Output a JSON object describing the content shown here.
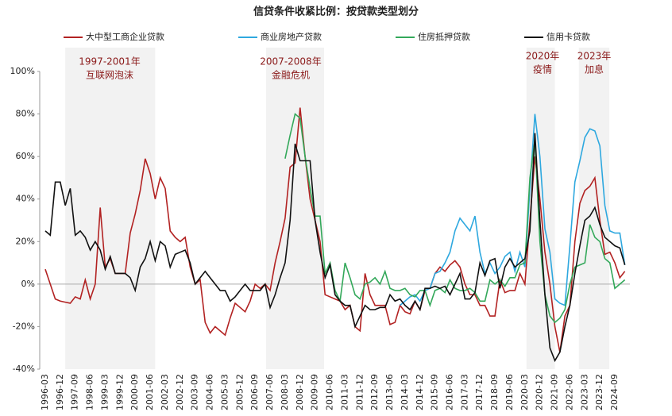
{
  "chart_data": {
    "type": "line",
    "title": "信贷条件收紧比例：按贷款类型划分",
    "categories": [
      "1996-03",
      null,
      null,
      "1996-12",
      null,
      null,
      "1997-09",
      null,
      null,
      "1998-06",
      null,
      null,
      "1999-03",
      null,
      null,
      "1999-12",
      null,
      null,
      "2000-09",
      null,
      null,
      "2001-06",
      null,
      null,
      "2002-03",
      null,
      null,
      "2002-12",
      null,
      null,
      "2003-09",
      null,
      null,
      "2004-06",
      null,
      null,
      "2005-03",
      null,
      null,
      "2005-12",
      null,
      null,
      "2006-09",
      null,
      null,
      "2007-06",
      null,
      null,
      "2008-03",
      null,
      null,
      "2008-12",
      null,
      null,
      "2009-09",
      null,
      null,
      "2010-06",
      null,
      null,
      "2011-03",
      null,
      null,
      "2011-12",
      null,
      null,
      "2012-09",
      null,
      null,
      "2013-06",
      null,
      null,
      "2014-03",
      null,
      null,
      "2014-12",
      null,
      null,
      "2015-09",
      null,
      null,
      "2016-06",
      null,
      null,
      "2017-03",
      null,
      null,
      "2017-12",
      null,
      null,
      "2018-09",
      null,
      null,
      "2019-06",
      null,
      null,
      "2020-03",
      null,
      null,
      "2020-12",
      null,
      null,
      "2021-09",
      null,
      null,
      "2022-06",
      null,
      null,
      "2023-03",
      null,
      null,
      "2023-12",
      null,
      null,
      "2024-09",
      null,
      null
    ],
    "series": [
      {
        "name": "大中型工商企业贷款",
        "color": "#b22222",
        "values": [
          7,
          0,
          -7,
          -8,
          -8.5,
          -9,
          -6,
          -7,
          2,
          -7,
          0,
          36,
          8,
          12,
          5,
          5,
          5,
          24,
          33,
          44,
          59,
          52,
          40,
          50,
          45,
          25,
          22,
          20,
          22,
          8,
          0,
          2,
          -18,
          -23,
          -20,
          -22,
          -24,
          -16,
          -9,
          -11,
          -13,
          -8,
          0,
          -2,
          0,
          -3,
          10,
          20,
          31,
          55,
          57,
          83,
          60,
          40,
          30,
          20,
          -5,
          -6,
          -7,
          -8,
          -12,
          -10,
          -20,
          -22,
          5,
          -5,
          -10,
          -10,
          -10,
          -19,
          -18,
          -10,
          -13,
          -14,
          -8,
          -12,
          -3,
          -2,
          5,
          8,
          6,
          9,
          11,
          8,
          0,
          -5,
          -5,
          -10,
          -10,
          -15,
          -15,
          2,
          -4,
          -3,
          -3,
          5,
          0,
          30,
          60,
          40,
          15,
          0,
          -20,
          -32,
          -15,
          -10,
          20,
          38,
          44,
          46,
          50,
          30,
          14,
          15,
          10,
          3,
          6
        ]
      },
      {
        "name": "商业房地产贷款",
        "color": "#2ea8df",
        "values": [
          null,
          null,
          null,
          null,
          null,
          null,
          null,
          null,
          null,
          null,
          null,
          null,
          null,
          null,
          null,
          null,
          null,
          null,
          null,
          null,
          null,
          null,
          null,
          null,
          null,
          null,
          null,
          null,
          null,
          null,
          null,
          null,
          null,
          null,
          null,
          null,
          null,
          null,
          null,
          null,
          null,
          null,
          null,
          null,
          null,
          null,
          null,
          null,
          null,
          null,
          null,
          null,
          null,
          null,
          null,
          null,
          null,
          null,
          null,
          null,
          null,
          null,
          null,
          null,
          null,
          null,
          null,
          null,
          null,
          null,
          null,
          -10,
          -8,
          -6,
          -5,
          -8,
          -3,
          -2,
          5,
          6,
          10,
          15,
          25,
          31,
          28,
          25,
          32,
          15,
          5,
          10,
          5,
          8,
          13,
          15,
          6,
          15,
          8,
          45,
          80,
          60,
          26,
          15,
          -7,
          -9,
          -10,
          18,
          48,
          58,
          69,
          73,
          72,
          65,
          37,
          25,
          24,
          24,
          9
        ]
      },
      {
        "name": "住房抵押贷款",
        "color": "#33a85a",
        "values": [
          null,
          null,
          null,
          null,
          null,
          null,
          null,
          null,
          null,
          null,
          null,
          null,
          null,
          null,
          null,
          null,
          null,
          null,
          null,
          null,
          null,
          null,
          null,
          null,
          null,
          null,
          null,
          null,
          null,
          null,
          null,
          null,
          null,
          null,
          null,
          null,
          null,
          null,
          null,
          null,
          null,
          null,
          null,
          null,
          null,
          null,
          null,
          null,
          59,
          70,
          80,
          78,
          60,
          45,
          32,
          32,
          5,
          10,
          -3,
          -8,
          10,
          3,
          -5,
          -7,
          0,
          1,
          3,
          0,
          6,
          -2,
          -3,
          -3,
          -2,
          -5,
          -6,
          -3,
          -3,
          -10,
          -3,
          -2,
          -4,
          2,
          -2,
          -3,
          -3,
          -2,
          -4,
          -8,
          -8,
          2,
          0,
          2,
          -1,
          3,
          3,
          9,
          10,
          50,
          68,
          20,
          -5,
          -15,
          -18,
          -16,
          -12,
          0,
          8,
          9,
          10,
          28,
          22,
          20,
          12,
          10,
          -2,
          0,
          2
        ]
      },
      {
        "name": "信用卡贷款",
        "color": "#111111",
        "values": [
          25,
          23,
          48,
          48,
          37,
          45,
          23,
          25,
          22,
          16,
          20,
          16,
          7,
          13,
          5,
          5,
          5,
          3,
          -3,
          8,
          12,
          20,
          11,
          20,
          18,
          8,
          14,
          15,
          16,
          10,
          0,
          3,
          6,
          3,
          0,
          -3,
          -3,
          -8,
          -6,
          -3,
          0,
          -3,
          -3,
          -3,
          0,
          -11,
          -5,
          3,
          10,
          30,
          66,
          58,
          58,
          58,
          30,
          15,
          3,
          9,
          -5,
          -8,
          -10,
          -10,
          -20,
          -15,
          -10,
          -12,
          -12,
          -11,
          -11,
          -5,
          -8,
          -7,
          -10,
          -12,
          -8,
          -12,
          -2,
          -2,
          -1,
          -2,
          -1,
          -5,
          0,
          5,
          -7,
          -7,
          -4,
          10,
          4,
          11,
          12,
          -2,
          8,
          12,
          8,
          10,
          12,
          25,
          71,
          30,
          -5,
          -30,
          -36,
          -32,
          -20,
          -10,
          5,
          18,
          30,
          32,
          36,
          28,
          22,
          20,
          18,
          17,
          9
        ]
      }
    ],
    "ylim": [
      -40,
      100
    ],
    "yticks": [
      {
        "value": -40,
        "label": "-40%"
      },
      {
        "value": -20,
        "label": "-20%"
      },
      {
        "value": 0,
        "label": "0%"
      },
      {
        "value": 20,
        "label": "20%"
      },
      {
        "value": 40,
        "label": "40%"
      },
      {
        "value": 60,
        "label": "60%"
      },
      {
        "value": 80,
        "label": "80%"
      },
      {
        "value": 100,
        "label": "100%"
      }
    ],
    "annotations": [
      {
        "lines": [
          "1997-2001年",
          "互联网泡沫"
        ]
      },
      {
        "lines": [
          "2007-2008年",
          "金融危机"
        ]
      },
      {
        "lines": [
          "2020年",
          "疫情"
        ]
      },
      {
        "lines": [
          "2023年",
          "加息"
        ]
      }
    ]
  }
}
